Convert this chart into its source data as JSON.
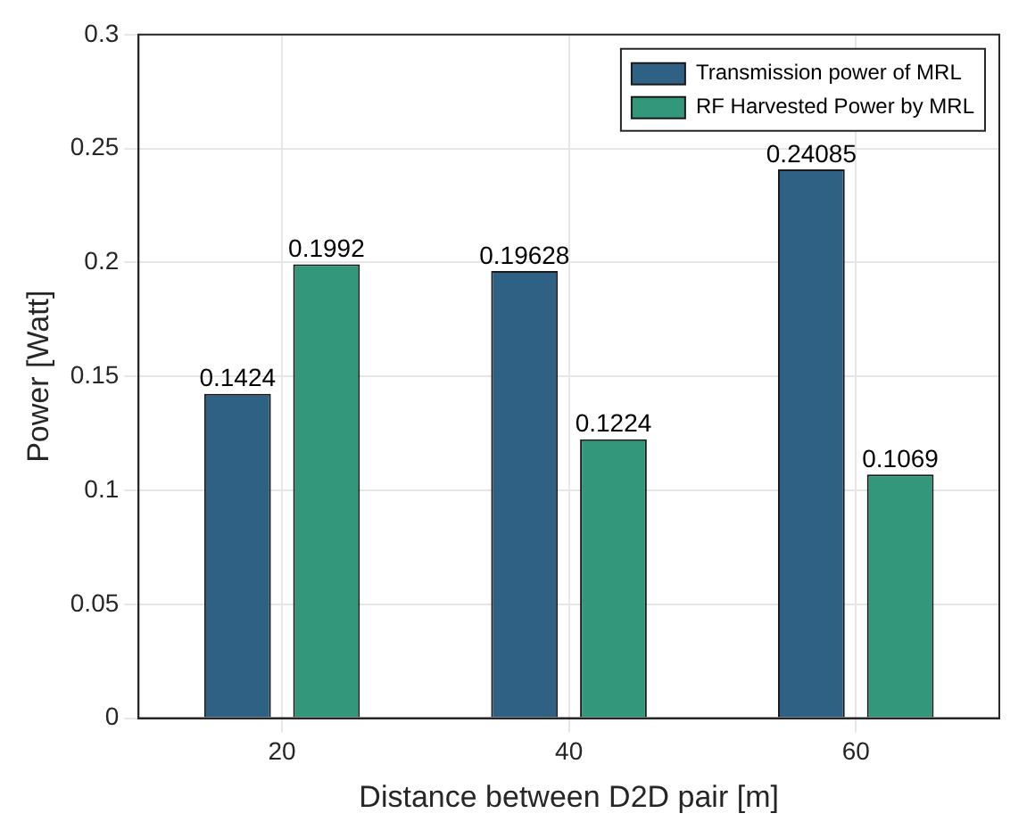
{
  "chart_data": {
    "type": "bar",
    "xlabel": "Distance between D2D pair [m]",
    "ylabel": "Power [Watt]",
    "categories": [
      "20",
      "40",
      "60"
    ],
    "series": [
      {
        "name": "Transmission power of MRL",
        "color": "#2e6184",
        "values": [
          0.1424,
          0.19628,
          0.24085
        ]
      },
      {
        "name": "RF Harvested Power by MRL",
        "color": "#33977c",
        "values": [
          0.1992,
          0.1224,
          0.1069
        ]
      }
    ],
    "ylim": [
      0,
      0.3
    ],
    "yticks": [
      0,
      0.05,
      0.1,
      0.15,
      0.2,
      0.25,
      0.3
    ],
    "grid": true,
    "legend": "top right",
    "data_labels": true
  }
}
